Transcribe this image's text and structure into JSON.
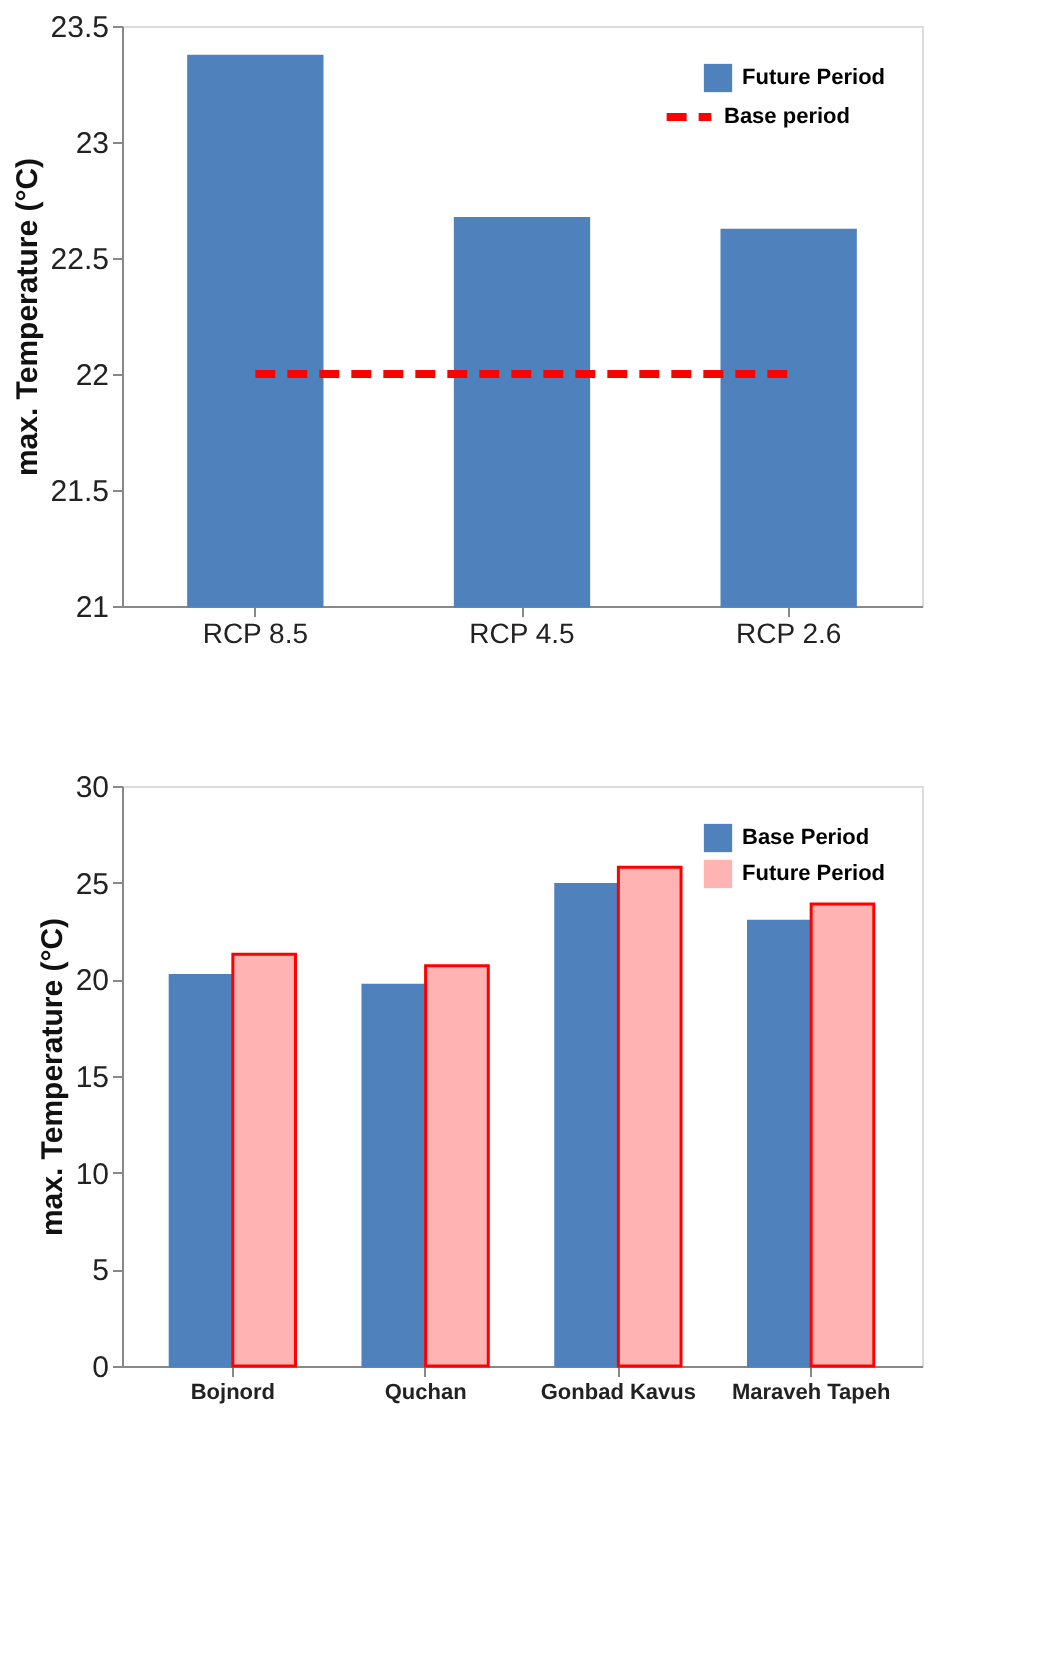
{
  "chart_data": [
    {
      "type": "bar",
      "ylabel": "max. Temperature (°C)",
      "categories": [
        "RCP 8.5",
        "RCP 4.5",
        "RCP 2.6"
      ],
      "series": [
        {
          "name": "Future Period",
          "color": "#4f81bd",
          "values": [
            23.37,
            22.67,
            22.62
          ]
        },
        {
          "name": "Base period",
          "type": "line",
          "line_style": "dashed",
          "color": "#ff0000",
          "values": [
            22.0,
            22.0,
            22.0
          ]
        }
      ],
      "ylim": [
        21,
        23.5
      ],
      "yticks": [
        21,
        21.5,
        22,
        22.5,
        23,
        23.5
      ],
      "grid": false,
      "legend": "top right"
    },
    {
      "type": "bar",
      "ylabel": "max. Temperature (°C)",
      "categories": [
        "Bojnord",
        "Quchan",
        "Gonbad Kavus",
        "Maraveh Tapeh"
      ],
      "series": [
        {
          "name": "Base Period",
          "color": "#4f81bd",
          "values": [
            20.2,
            19.7,
            24.9,
            23.0
          ]
        },
        {
          "name": "Future Period",
          "color": "#ffb3b3",
          "values": [
            21.3,
            20.7,
            25.8,
            23.9
          ]
        }
      ],
      "ylim": [
        0,
        30
      ],
      "yticks": [
        0,
        5,
        10,
        15,
        20,
        25,
        30
      ],
      "grid": false,
      "legend": "top right"
    }
  ]
}
